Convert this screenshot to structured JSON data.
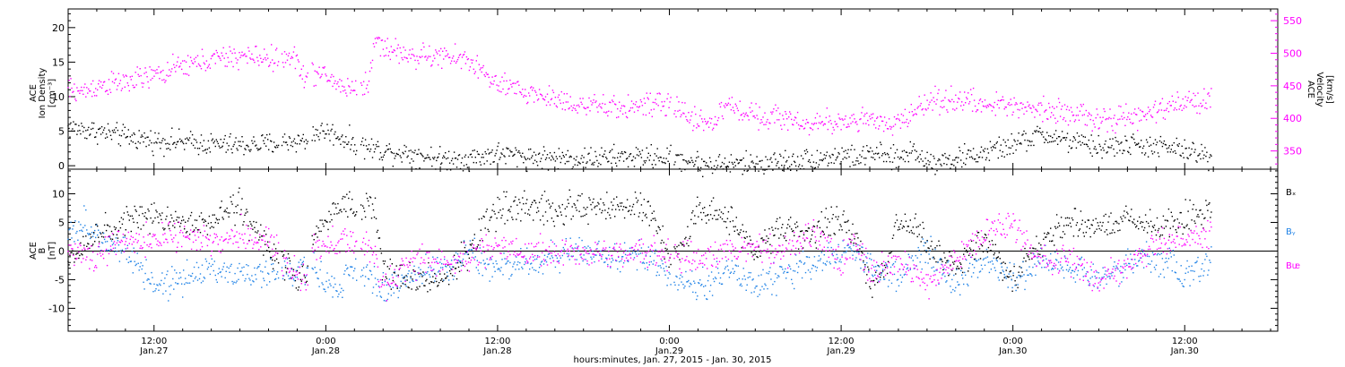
{
  "xaxis": {
    "title": "hours:minutes, Jan. 27, 2015 - Jan. 30, 2015",
    "start_hours": 6,
    "end_hours": 90.5,
    "ticks": [
      {
        "hours": 12,
        "time": "12:00",
        "date": "Jan.27"
      },
      {
        "hours": 24,
        "time": "0:00",
        "date": "Jan.28"
      },
      {
        "hours": 36,
        "time": "12:00",
        "date": "Jan.28"
      },
      {
        "hours": 48,
        "time": "0:00",
        "date": "Jan.29"
      },
      {
        "hours": 60,
        "time": "12:00",
        "date": "Jan.29"
      },
      {
        "hours": 72,
        "time": "0:00",
        "date": "Jan.30"
      },
      {
        "hours": 84,
        "time": "12:00",
        "date": "Jan.30"
      }
    ]
  },
  "chart_data": [
    {
      "type": "scatter",
      "panel": "top",
      "ylabel_left": [
        "ACE",
        "Ion Density",
        "[cm⁻³]"
      ],
      "ylabel_right": [
        "ACE",
        "Velocity",
        "[km/s]"
      ],
      "ylim_left": [
        -0.5,
        22.7
      ],
      "ylim_right": [
        322,
        568
      ],
      "yticks_left": [
        0,
        5,
        10,
        15,
        20
      ],
      "yticks_right": [
        350,
        400,
        450,
        500,
        550
      ],
      "series": [
        {
          "name": "",
          "axis": "left",
          "color": "#000000",
          "x": [
            6,
            8,
            10,
            12,
            14,
            16,
            18,
            20,
            22,
            22.7,
            23,
            24,
            25,
            26,
            27,
            28,
            30,
            32,
            34,
            36,
            38,
            40,
            42,
            44,
            46,
            48,
            49.8,
            50.2,
            52,
            54,
            56,
            58,
            60,
            61.5,
            62,
            63.5,
            64,
            65,
            66,
            68,
            70,
            72,
            74,
            76,
            78,
            80,
            82,
            84,
            85.9
          ],
          "values": [
            5.5,
            5,
            4.2,
            3.6,
            3.4,
            3.1,
            2.9,
            3.1,
            3.6,
            3.4,
            4.7,
            5,
            4.2,
            3.2,
            2.6,
            2.2,
            1.8,
            1,
            1,
            1.8,
            1.3,
            1.1,
            1,
            1.2,
            1.3,
            1.2,
            0.6,
            0.2,
            0.2,
            0.3,
            0.6,
            0.9,
            1.5,
            1,
            2,
            1,
            0.9,
            2.4,
            0.6,
            1,
            1.8,
            3,
            4.5,
            3.5,
            2.6,
            3,
            2.8,
            2.2,
            1.2
          ]
        },
        {
          "name": "",
          "axis": "right",
          "color": "#ff00ff",
          "x": [
            6,
            7,
            8,
            10,
            12,
            14,
            16,
            18,
            20,
            21,
            22,
            22.7,
            23,
            24,
            25,
            26,
            27,
            27.5,
            28,
            30,
            32,
            34,
            36,
            38,
            40,
            42,
            44,
            46,
            48,
            49.8,
            50.2,
            51,
            52,
            54,
            56,
            58,
            60,
            61.5,
            62,
            63.5,
            64,
            66,
            68,
            70,
            72,
            74,
            76,
            78,
            80,
            82,
            84,
            85.9
          ],
          "values": [
            445,
            440,
            450,
            455,
            465,
            480,
            490,
            495,
            493,
            490,
            492,
            455,
            470,
            465,
            450,
            445,
            455,
            525,
            510,
            495,
            495,
            490,
            450,
            440,
            430,
            420,
            415,
            420,
            420,
            400,
            395,
            392,
            420,
            405,
            400,
            390,
            395,
            400,
            395,
            385,
            395,
            425,
            430,
            420,
            420,
            415,
            410,
            395,
            400,
            410,
            425,
            430
          ]
        }
      ]
    },
    {
      "type": "scatter",
      "panel": "bottom",
      "ylabel_left": [
        "ACE",
        "B",
        "[nT]"
      ],
      "ylim": [
        -14,
        14.3
      ],
      "yticks": [
        -10,
        -5,
        0,
        5,
        10
      ],
      "zero_line": true,
      "series": [
        {
          "name": "Bₓ",
          "color": "#000000",
          "x": [
            6,
            8,
            10,
            12,
            14,
            16,
            17,
            18,
            20,
            22,
            22.7,
            23,
            24,
            25,
            26,
            27,
            27.5,
            28,
            30,
            32,
            34,
            35,
            36,
            38,
            40,
            42,
            44,
            46,
            47,
            48,
            49,
            50,
            52,
            54,
            56,
            58,
            60,
            61,
            62,
            63,
            64,
            65,
            66,
            68,
            70,
            72,
            74,
            76,
            78,
            80,
            82,
            84,
            85.9
          ],
          "values": [
            -2,
            3,
            5,
            6,
            5,
            5,
            7,
            7.5,
            0,
            -4,
            -4,
            2,
            5,
            8,
            7,
            8,
            6,
            -4,
            -5,
            -5,
            0,
            4,
            7,
            7.5,
            7.5,
            7.5,
            7.5,
            7.5,
            6,
            -2,
            1,
            7,
            6,
            0,
            4,
            3,
            6,
            3,
            -6,
            -3,
            5,
            5,
            1,
            -3,
            2,
            -5,
            2,
            5,
            4,
            6,
            4,
            6,
            7
          ]
        },
        {
          "name": "Bᵧ",
          "color": "#1f82e6",
          "x": [
            6,
            7,
            8,
            10,
            12,
            14,
            16,
            18,
            20,
            22,
            22.7,
            23,
            24,
            25,
            26,
            27,
            27.5,
            28,
            30,
            32,
            33,
            34,
            35,
            36,
            38,
            40,
            42,
            44,
            46,
            48,
            49,
            50,
            52,
            54,
            56,
            58,
            60,
            61,
            62,
            64,
            65,
            66,
            68,
            70,
            72,
            74,
            76,
            78,
            80,
            82,
            84,
            85.9
          ],
          "values": [
            2,
            5,
            2,
            0,
            -6,
            -5,
            -3,
            -4,
            -4,
            -4,
            -3,
            -2,
            -6,
            -7,
            -2,
            -4,
            -6,
            -7,
            -4,
            -3,
            -4,
            1,
            -3,
            -3,
            -2,
            -1,
            0,
            -1,
            -1,
            -4,
            -6,
            -7,
            -3,
            -6,
            -4,
            -2,
            0,
            0,
            -2,
            -5,
            -2,
            0,
            -6,
            -1,
            -5,
            -2,
            -3,
            -5,
            -2,
            -1,
            -5,
            -1
          ]
        },
        {
          "name": "Bᵫ",
          "color": "#ff00ff",
          "x": [
            6,
            8,
            10,
            12,
            14,
            16,
            18,
            20,
            22,
            22.7,
            23,
            24,
            25,
            26,
            27,
            27.5,
            28,
            30,
            32,
            34,
            36,
            38,
            40,
            42,
            44,
            46,
            48,
            49,
            50,
            52,
            54,
            56,
            58,
            60,
            61,
            62,
            64,
            65,
            66,
            68,
            70,
            72,
            74,
            76,
            78,
            80,
            82,
            84,
            85.9
          ],
          "values": [
            0,
            -1,
            2,
            2,
            2.5,
            1,
            3,
            2,
            -5,
            -3,
            0,
            1,
            2,
            2,
            1,
            -1,
            -6,
            -2,
            -2,
            -1,
            1,
            0,
            0,
            0,
            -0.5,
            -0.5,
            -0.5,
            -1,
            -1,
            0,
            1,
            0,
            3,
            -2,
            2,
            -4,
            -2,
            -4,
            -6,
            -2,
            3,
            5,
            -2,
            -1,
            -5,
            -3,
            1,
            2,
            3
          ]
        }
      ]
    }
  ]
}
